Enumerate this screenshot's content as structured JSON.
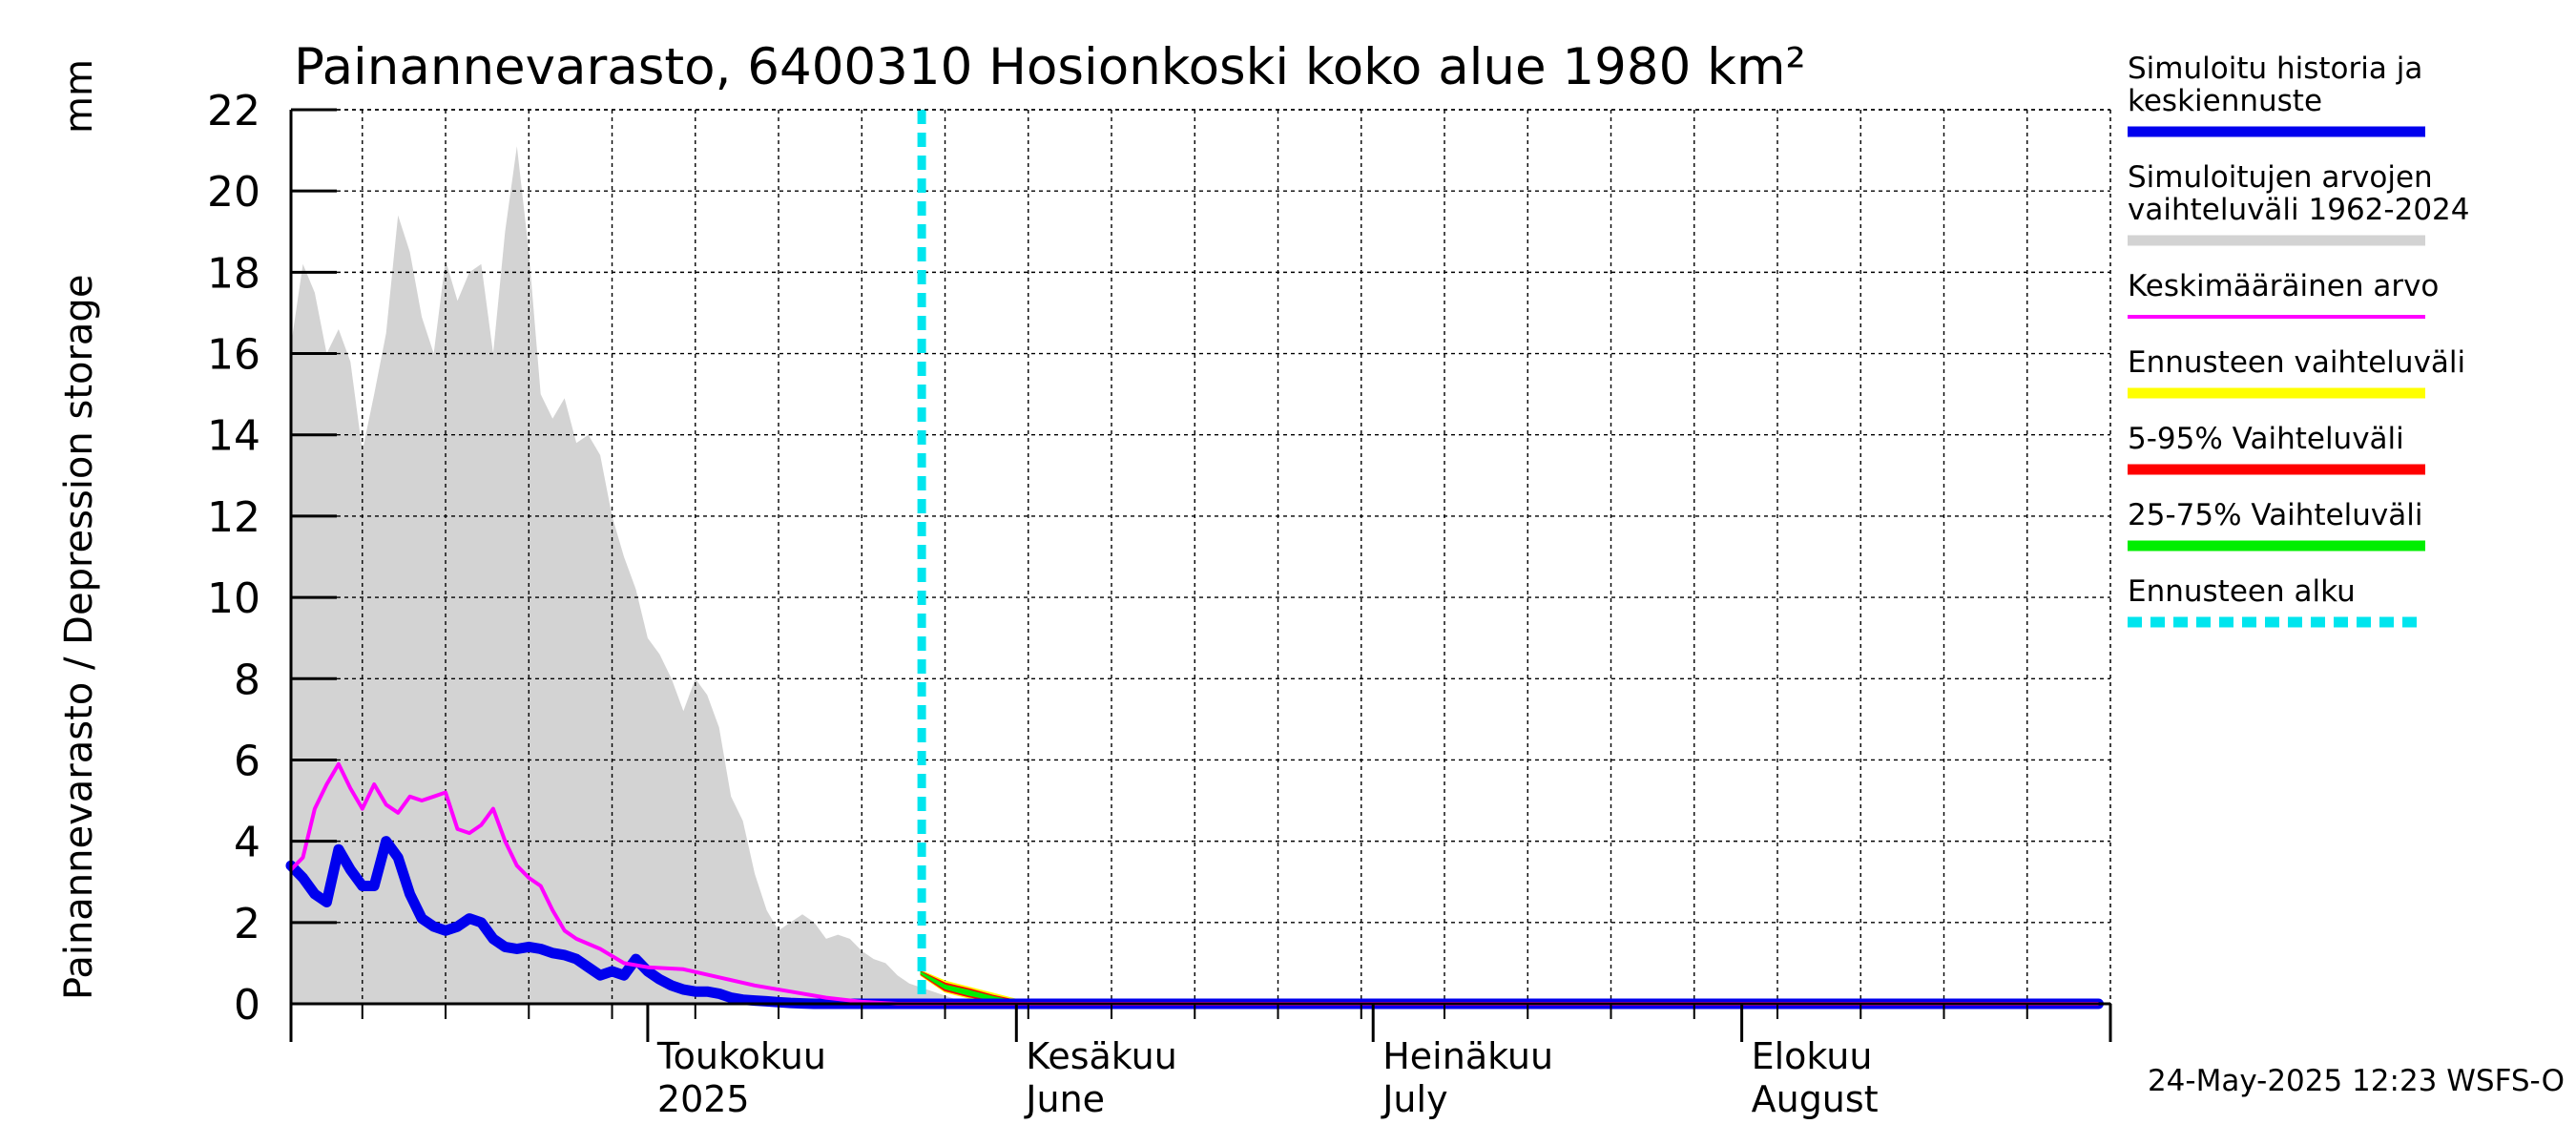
{
  "chart_data": {
    "type": "line",
    "title": "Painannevarasto, 6400310 Hosionkoski koko alue 1980 km²",
    "ylabel": "Painannevarasto / Depression storage",
    "yunit": "mm",
    "ylim": [
      0,
      22
    ],
    "yticks": [
      0,
      2,
      4,
      6,
      8,
      10,
      12,
      14,
      16,
      18,
      20,
      22
    ],
    "xlim": [
      "2025-04-01",
      "2025-08-31"
    ],
    "month_labels": [
      {
        "date": "2025-05-01",
        "line1": "Toukokuu",
        "line2": "2025"
      },
      {
        "date": "2025-06-01",
        "line1": "Kesäkuu",
        "line2": "June"
      },
      {
        "date": "2025-07-01",
        "line1": "Heinäkuu",
        "line2": "July"
      },
      {
        "date": "2025-08-01",
        "line1": "Elokuu",
        "line2": "August"
      }
    ],
    "forecast_start": "2025-05-24",
    "grid": true,
    "legend_position": "right",
    "series": [
      {
        "name": "Simuloitu historia ja keskiennuste",
        "color": "#0000ee",
        "x": [
          "2025-04-01",
          "2025-04-02",
          "2025-04-03",
          "2025-04-04",
          "2025-04-05",
          "2025-04-06",
          "2025-04-07",
          "2025-04-08",
          "2025-04-09",
          "2025-04-10",
          "2025-04-11",
          "2025-04-12",
          "2025-04-13",
          "2025-04-14",
          "2025-04-15",
          "2025-04-16",
          "2025-04-17",
          "2025-04-18",
          "2025-04-19",
          "2025-04-20",
          "2025-04-21",
          "2025-04-22",
          "2025-04-23",
          "2025-04-24",
          "2025-04-25",
          "2025-04-26",
          "2025-04-27",
          "2025-04-28",
          "2025-04-29",
          "2025-04-30",
          "2025-05-01",
          "2025-05-02",
          "2025-05-03",
          "2025-05-04",
          "2025-05-05",
          "2025-05-06",
          "2025-05-07",
          "2025-05-08",
          "2025-05-09",
          "2025-05-10",
          "2025-05-11",
          "2025-05-12",
          "2025-05-13",
          "2025-05-14",
          "2025-05-15",
          "2025-05-16",
          "2025-05-17",
          "2025-05-18",
          "2025-05-19",
          "2025-05-20",
          "2025-05-21",
          "2025-05-22",
          "2025-05-23",
          "2025-05-24",
          "2025-05-25",
          "2025-05-26",
          "2025-05-27",
          "2025-05-28",
          "2025-05-29",
          "2025-05-30",
          "2025-05-31",
          "2025-06-01",
          "2025-06-02",
          "2025-06-03",
          "2025-06-05",
          "2025-08-31"
        ],
        "values": [
          3.4,
          3.1,
          2.7,
          2.5,
          3.8,
          3.3,
          2.9,
          2.9,
          4.0,
          3.6,
          2.7,
          2.1,
          1.9,
          1.8,
          1.9,
          2.1,
          2.0,
          1.6,
          1.4,
          1.35,
          1.4,
          1.35,
          1.25,
          1.2,
          1.1,
          0.9,
          0.7,
          0.8,
          0.7,
          1.1,
          0.8,
          0.6,
          0.45,
          0.35,
          0.3,
          0.3,
          0.25,
          0.15,
          0.1,
          0.08,
          0.06,
          0.04,
          0.02,
          0.01,
          0.0,
          0.0,
          0.0,
          0.0,
          0.0,
          0.0,
          0.0,
          0.0,
          0.0,
          0.0,
          0.0,
          0.0,
          0.0,
          0.0,
          0.0,
          0.0,
          0.0,
          0.0,
          0.0,
          0.0,
          0.0,
          0.0
        ]
      },
      {
        "name": "Keskimääräinen arvo",
        "color": "#ff00ff",
        "x": [
          "2025-04-01",
          "2025-04-02",
          "2025-04-03",
          "2025-04-04",
          "2025-04-05",
          "2025-04-06",
          "2025-04-07",
          "2025-04-08",
          "2025-04-09",
          "2025-04-10",
          "2025-04-11",
          "2025-04-12",
          "2025-04-13",
          "2025-04-14",
          "2025-04-15",
          "2025-04-16",
          "2025-04-17",
          "2025-04-18",
          "2025-04-19",
          "2025-04-20",
          "2025-04-21",
          "2025-04-22",
          "2025-04-23",
          "2025-04-24",
          "2025-04-25",
          "2025-04-27",
          "2025-04-29",
          "2025-05-01",
          "2025-05-04",
          "2025-05-07",
          "2025-05-10",
          "2025-05-13",
          "2025-05-16",
          "2025-05-19",
          "2025-05-22",
          "2025-05-25",
          "2025-05-28",
          "2025-05-31",
          "2025-06-03",
          "2025-06-05",
          "2025-08-31"
        ],
        "values": [
          3.3,
          3.6,
          4.8,
          5.4,
          5.9,
          5.3,
          4.8,
          5.4,
          4.9,
          4.7,
          5.1,
          5.0,
          5.1,
          5.2,
          4.3,
          4.2,
          4.4,
          4.8,
          4.0,
          3.4,
          3.1,
          2.9,
          2.3,
          1.8,
          1.6,
          1.35,
          1.0,
          0.9,
          0.85,
          0.65,
          0.45,
          0.3,
          0.15,
          0.05,
          0.0,
          0.0,
          0.0,
          0.0,
          0.0,
          0.0,
          0.0
        ]
      },
      {
        "name": "Simuloitujen arvojen vaihteluväli 1962-2024",
        "color": "#d3d3d3",
        "type": "area",
        "x": [
          "2025-04-01",
          "2025-04-02",
          "2025-04-03",
          "2025-04-04",
          "2025-04-05",
          "2025-04-06",
          "2025-04-07",
          "2025-04-08",
          "2025-04-09",
          "2025-04-10",
          "2025-04-11",
          "2025-04-12",
          "2025-04-13",
          "2025-04-14",
          "2025-04-15",
          "2025-04-16",
          "2025-04-17",
          "2025-04-18",
          "2025-04-19",
          "2025-04-20",
          "2025-04-21",
          "2025-04-22",
          "2025-04-23",
          "2025-04-24",
          "2025-04-25",
          "2025-04-26",
          "2025-04-27",
          "2025-04-28",
          "2025-04-29",
          "2025-04-30",
          "2025-05-01",
          "2025-05-02",
          "2025-05-03",
          "2025-05-04",
          "2025-05-05",
          "2025-05-06",
          "2025-05-07",
          "2025-05-08",
          "2025-05-09",
          "2025-05-10",
          "2025-05-11",
          "2025-05-12",
          "2025-05-13",
          "2025-05-14",
          "2025-05-15",
          "2025-05-16",
          "2025-05-17",
          "2025-05-18",
          "2025-05-19",
          "2025-05-20",
          "2025-05-21",
          "2025-05-22",
          "2025-05-23",
          "2025-05-24",
          "2025-05-25",
          "2025-05-26",
          "2025-05-27",
          "2025-05-28",
          "2025-05-29",
          "2025-05-30",
          "2025-05-31",
          "2025-06-02",
          "2025-06-04",
          "2025-06-06",
          "2025-06-08",
          "2025-06-10",
          "2025-06-13",
          "2025-06-16",
          "2025-06-20",
          "2025-06-25",
          "2025-07-01",
          "2025-07-10",
          "2025-08-31"
        ],
        "upper": [
          16.2,
          18.2,
          17.5,
          16.0,
          16.6,
          15.8,
          13.6,
          15.0,
          16.5,
          19.4,
          18.5,
          16.9,
          16.0,
          18.3,
          17.3,
          18.0,
          18.2,
          16.0,
          19.0,
          21.1,
          18.5,
          15.0,
          14.4,
          14.9,
          13.8,
          14.0,
          13.5,
          12.0,
          11.0,
          10.2,
          9.0,
          8.6,
          8.0,
          7.2,
          8.0,
          7.6,
          6.8,
          5.1,
          4.5,
          3.2,
          2.3,
          1.8,
          2.0,
          2.2,
          2.0,
          1.6,
          1.7,
          1.6,
          1.3,
          1.1,
          1.0,
          0.7,
          0.5,
          0.4,
          0.3,
          0.2,
          0.1,
          0.05,
          0.0,
          0.0,
          0.0,
          0.0,
          0.0,
          0.0,
          0.0,
          0.0,
          0.0,
          0.0,
          0.0,
          0.0,
          0.0,
          0.0,
          0.0
        ],
        "lower": [
          0,
          0,
          0,
          0,
          0,
          0,
          0,
          0,
          0,
          0,
          0,
          0,
          0,
          0,
          0,
          0,
          0,
          0,
          0,
          0,
          0,
          0,
          0,
          0,
          0,
          0,
          0,
          0,
          0,
          0,
          0,
          0,
          0,
          0,
          0,
          0,
          0,
          0,
          0,
          0,
          0,
          0,
          0,
          0,
          0,
          0,
          0,
          0,
          0,
          0,
          0,
          0,
          0,
          0,
          0,
          0,
          0,
          0,
          0,
          0,
          0,
          0,
          0,
          0,
          0,
          0,
          0,
          0,
          0,
          0,
          0,
          0,
          0
        ]
      },
      {
        "name": "Ennusteen vaihteluväli",
        "color": "#ffff00",
        "type": "band",
        "x": [
          "2025-05-24",
          "2025-05-26",
          "2025-05-28",
          "2025-05-30",
          "2025-06-01",
          "2025-06-03"
        ],
        "upper": [
          0.8,
          0.55,
          0.4,
          0.25,
          0.1,
          0.0
        ],
        "lower": [
          0.7,
          0.3,
          0.15,
          0.05,
          0.0,
          0.0
        ]
      },
      {
        "name": "5-95% Vaihteluväli",
        "color": "#ff0000",
        "type": "band",
        "x": [
          "2025-05-24",
          "2025-05-26",
          "2025-05-28",
          "2025-05-30",
          "2025-06-01",
          "2025-06-03"
        ],
        "upper": [
          0.78,
          0.5,
          0.36,
          0.2,
          0.07,
          0.0
        ],
        "lower": [
          0.72,
          0.33,
          0.18,
          0.07,
          0.0,
          0.0
        ]
      },
      {
        "name": "25-75% Vaihteluväli",
        "color": "#00ee00",
        "type": "band",
        "x": [
          "2025-05-24",
          "2025-05-26",
          "2025-05-28",
          "2025-05-30",
          "2025-06-01",
          "2025-06-03"
        ],
        "upper": [
          0.76,
          0.45,
          0.32,
          0.17,
          0.05,
          0.0
        ],
        "lower": [
          0.74,
          0.38,
          0.22,
          0.1,
          0.01,
          0.0
        ]
      },
      {
        "name": "Ennusteen alku",
        "color": "#00e5ee",
        "type": "vline"
      }
    ],
    "legend": [
      {
        "line1": "Simuloitu historia ja",
        "line2": "keskiennuste",
        "color": "#0000ee",
        "style": "solid"
      },
      {
        "line1": "Simuloitujen arvojen",
        "line2": "vaihteluväli 1962-2024",
        "color": "#d3d3d3",
        "style": "solid"
      },
      {
        "line1": "Keskimääräinen arvo",
        "line2": "",
        "color": "#ff00ff",
        "style": "thin"
      },
      {
        "line1": "Ennusteen vaihteluväli",
        "line2": "",
        "color": "#ffff00",
        "style": "solid"
      },
      {
        "line1": "5-95% Vaihteluväli",
        "line2": "",
        "color": "#ff0000",
        "style": "solid"
      },
      {
        "line1": "25-75% Vaihteluväli",
        "line2": "",
        "color": "#00ee00",
        "style": "solid"
      },
      {
        "line1": "Ennusteen alku",
        "line2": "",
        "color": "#00e5ee",
        "style": "dashed"
      }
    ],
    "footer": "24-May-2025 12:23 WSFS-O"
  }
}
